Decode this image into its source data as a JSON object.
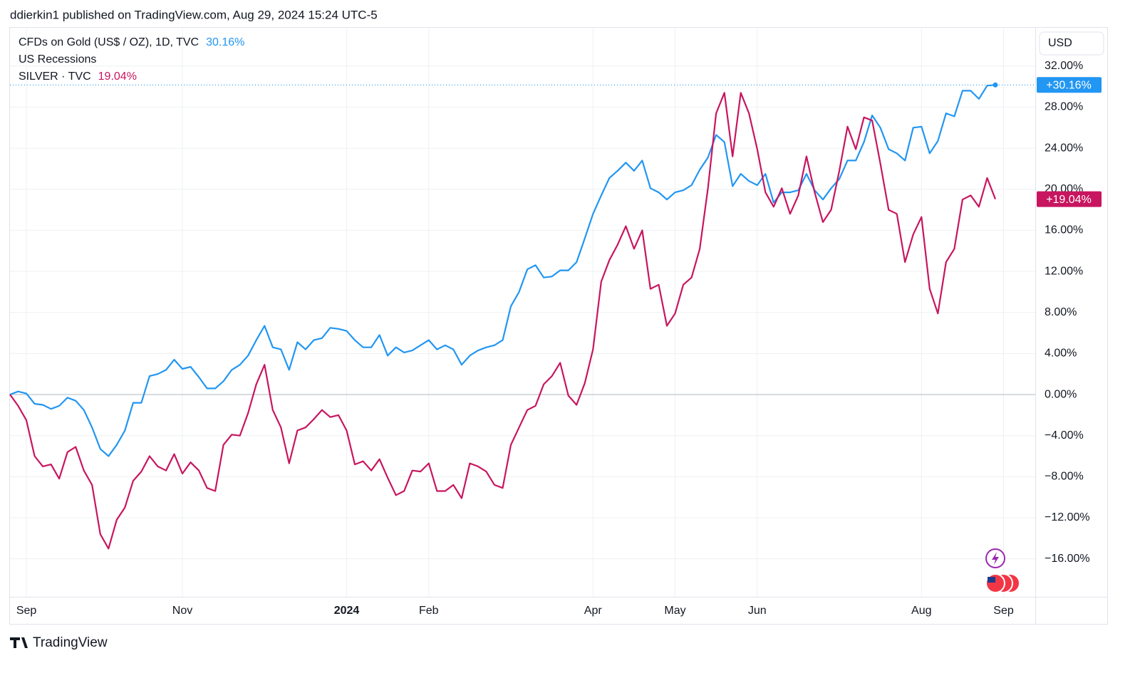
{
  "header": "ddierkin1 published on TradingView.com, Aug 29, 2024 15:24 UTC-5",
  "footer": "TradingView",
  "chart_data": {
    "type": "line",
    "currency": "USD",
    "indicators": [
      "US Recessions"
    ],
    "categories": [
      null,
      null,
      "Sep",
      null,
      null,
      null,
      null,
      null,
      null,
      null,
      null,
      null,
      null,
      null,
      null,
      null,
      null,
      null,
      null,
      null,
      null,
      "Nov",
      null,
      null,
      null,
      null,
      null,
      null,
      null,
      null,
      null,
      null,
      null,
      null,
      null,
      null,
      null,
      null,
      null,
      null,
      null,
      "2024",
      null,
      null,
      null,
      null,
      null,
      null,
      null,
      null,
      null,
      "Feb",
      null,
      null,
      null,
      null,
      null,
      null,
      null,
      null,
      null,
      null,
      null,
      null,
      null,
      null,
      null,
      null,
      null,
      null,
      null,
      "Apr",
      null,
      null,
      null,
      null,
      null,
      null,
      null,
      null,
      null,
      "May",
      null,
      null,
      null,
      null,
      null,
      null,
      null,
      null,
      null,
      "Jun",
      null,
      null,
      null,
      null,
      null,
      null,
      null,
      null,
      null,
      null,
      null,
      null,
      null,
      null,
      null,
      null,
      null,
      null,
      null,
      "Aug",
      null,
      null,
      null,
      null,
      null,
      null,
      null,
      null,
      null,
      "Sep"
    ],
    "series": [
      {
        "name": "CFDs on Gold (US$ / OZ), 1D, TVC",
        "color": "#2196f3",
        "legend_value": "30.16%",
        "price_label": "+30.16%",
        "values": [
          0,
          0.3,
          0.1,
          -0.9,
          -1.0,
          -1.4,
          -1.1,
          -0.3,
          -0.6,
          -1.5,
          -3.2,
          -5.3,
          -6.0,
          -4.9,
          -3.5,
          -0.8,
          -0.8,
          1.8,
          2.0,
          2.4,
          3.4,
          2.5,
          2.7,
          1.7,
          0.6,
          0.6,
          1.3,
          2.4,
          2.9,
          3.8,
          5.3,
          6.7,
          4.6,
          4.4,
          2.4,
          5.1,
          4.4,
          5.3,
          5.5,
          6.5,
          6.4,
          6.2,
          5.3,
          4.6,
          4.6,
          5.8,
          3.8,
          4.6,
          4.1,
          4.3,
          4.8,
          5.3,
          4.4,
          4.8,
          4.4,
          2.9,
          3.8,
          4.3,
          4.6,
          4.8,
          5.3,
          8.6,
          10.0,
          12.2,
          12.6,
          11.4,
          11.5,
          12.1,
          12.1,
          12.9,
          15.2,
          17.6,
          19.4,
          21.1,
          21.8,
          22.6,
          21.8,
          22.8,
          20.1,
          19.7,
          19.0,
          19.7,
          19.9,
          20.4,
          21.9,
          23.1,
          25.3,
          24.6,
          20.3,
          21.5,
          20.8,
          20.4,
          21.5,
          18.7,
          19.7,
          19.7,
          19.9,
          21.5,
          19.9,
          19.0,
          20.1,
          21.0,
          22.8,
          22.8,
          24.6,
          27.2,
          26.0,
          23.9,
          23.5,
          22.8,
          26.0,
          26.1,
          23.5,
          24.7,
          27.4,
          27.1,
          29.6,
          29.6,
          28.8,
          30.1,
          30.16,
          null
        ]
      },
      {
        "name": "SILVER · TVC",
        "color": "#c8155f",
        "legend_value": "19.04%",
        "price_label": "+19.04%",
        "values": [
          0,
          -1.1,
          -2.5,
          -6.0,
          -7.0,
          -6.8,
          -8.2,
          -5.6,
          -5.1,
          -7.4,
          -8.8,
          -13.6,
          -15.0,
          -12.2,
          -11.0,
          -8.4,
          -7.5,
          -6.0,
          -7.0,
          -7.4,
          -5.8,
          -7.7,
          -6.6,
          -7.4,
          -9.1,
          -9.4,
          -4.9,
          -3.9,
          -4.0,
          -1.8,
          1.0,
          2.9,
          -1.5,
          -3.2,
          -6.7,
          -3.5,
          -3.2,
          -2.4,
          -1.5,
          -2.2,
          -2.0,
          -3.5,
          -6.8,
          -6.5,
          -7.4,
          -6.3,
          -8.1,
          -9.8,
          -9.4,
          -7.4,
          -7.5,
          -6.7,
          -9.4,
          -9.4,
          -8.8,
          -10.1,
          -6.7,
          -7.0,
          -7.5,
          -8.8,
          -9.1,
          -4.9,
          -3.2,
          -1.5,
          -1.1,
          1.0,
          1.8,
          3.1,
          -0.1,
          -1.0,
          1.1,
          4.4,
          11.0,
          13.1,
          14.6,
          16.4,
          14.2,
          16.0,
          10.3,
          10.7,
          6.7,
          7.9,
          10.7,
          11.4,
          14.2,
          20.1,
          27.4,
          29.4,
          23.2,
          29.4,
          27.4,
          23.9,
          19.7,
          18.3,
          20.1,
          17.6,
          19.4,
          23.2,
          19.7,
          16.8,
          18.0,
          21.8,
          26.1,
          23.9,
          27.0,
          26.7,
          22.5,
          18.0,
          17.6,
          12.9,
          15.6,
          17.3,
          10.3,
          7.9,
          12.9,
          14.2,
          19.0,
          19.4,
          18.3,
          21.1,
          19.04,
          null
        ]
      }
    ],
    "ylim": [
      -19.7,
      35.8
    ],
    "yticks": [
      {
        "value": -16,
        "label": "−16.00%"
      },
      {
        "value": -12,
        "label": "−12.00%"
      },
      {
        "value": -8,
        "label": "−8.00%"
      },
      {
        "value": -4,
        "label": "−4.00%"
      },
      {
        "value": 0,
        "label": "0.00%"
      },
      {
        "value": 4,
        "label": "4.00%"
      },
      {
        "value": 8,
        "label": "8.00%"
      },
      {
        "value": 12,
        "label": "12.00%"
      },
      {
        "value": 16,
        "label": "16.00%"
      },
      {
        "value": 20,
        "label": "20.00%"
      },
      {
        "value": 24,
        "label": "24.00%"
      },
      {
        "value": 28,
        "label": "28.00%"
      },
      {
        "value": 32,
        "label": "32.00%"
      }
    ],
    "grid": true
  }
}
